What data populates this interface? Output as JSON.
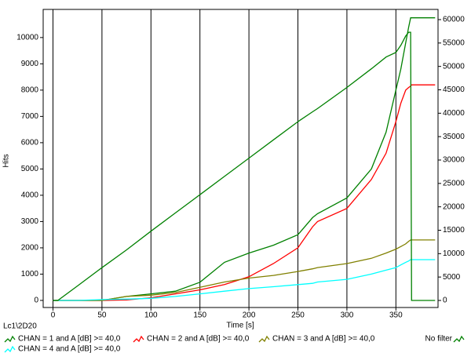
{
  "chart_data": {
    "type": "line",
    "y_label": "Hits",
    "x_label": "Time [s]",
    "caption": "Lc1\\2D20",
    "x": [
      0,
      5,
      25,
      50,
      75,
      100,
      125,
      150,
      175,
      200,
      225,
      250,
      265,
      270,
      300,
      325,
      340,
      350,
      355,
      360,
      363,
      365,
      366,
      380,
      390
    ],
    "series": [
      {
        "name": "CHAN = 1 and A [dB] >= 40,0",
        "color": "#008000",
        "values": [
          0,
          0,
          0,
          0,
          150,
          250,
          350,
          690,
          1450,
          1800,
          2100,
          2500,
          3150,
          3300,
          3900,
          5000,
          6400,
          8000,
          8800,
          9800,
          10400,
          10750,
          10750,
          10750,
          10750
        ]
      },
      {
        "name": "CHAN = 2 and A [dB] >= 40,0",
        "color": "#ff0000",
        "values": [
          0,
          0,
          0,
          0,
          20,
          100,
          250,
          400,
          600,
          900,
          1400,
          2000,
          2800,
          3000,
          3500,
          4600,
          5600,
          6800,
          7500,
          8000,
          8100,
          8150,
          8200,
          8200,
          8200
        ]
      },
      {
        "name": "CHAN = 3 and A [dB] >= 40,0",
        "color": "#808000",
        "values": [
          0,
          0,
          0,
          0,
          150,
          200,
          300,
          500,
          700,
          850,
          950,
          1100,
          1200,
          1250,
          1400,
          1600,
          1800,
          1950,
          2050,
          2150,
          2250,
          2300,
          2300,
          2300,
          2300
        ]
      },
      {
        "name": "CHAN = 4 and A [dB] >= 40,0",
        "color": "#00ffff",
        "values": [
          0,
          0,
          0,
          30,
          50,
          80,
          150,
          250,
          350,
          450,
          520,
          600,
          650,
          700,
          800,
          1000,
          1150,
          1250,
          1350,
          1450,
          1500,
          1550,
          1550,
          1550,
          1550
        ]
      },
      {
        "name": "No filter",
        "color": "#008000",
        "axis": "y2",
        "values": [
          0,
          0,
          3100,
          7000,
          10800,
          14800,
          18700,
          22600,
          26500,
          30400,
          34300,
          38200,
          40300,
          41000,
          45500,
          49500,
          52000,
          53000,
          54500,
          56500,
          57300,
          57300,
          0,
          0,
          0
        ]
      }
    ],
    "xlim": [
      -10,
      393
    ],
    "xticks": [
      0,
      50,
      100,
      150,
      200,
      250,
      300,
      350
    ],
    "ylim": [
      -270,
      11070
    ],
    "yticks": [
      0,
      1000,
      2000,
      3000,
      4000,
      5000,
      6000,
      7000,
      8000,
      9000,
      10000
    ],
    "y2lim": [
      -1510,
      62180
    ],
    "y2ticks": [
      0,
      5000,
      10000,
      15000,
      20000,
      25000,
      30000,
      35000,
      40000,
      45000,
      50000,
      55000,
      60000
    ],
    "grid": "x"
  }
}
